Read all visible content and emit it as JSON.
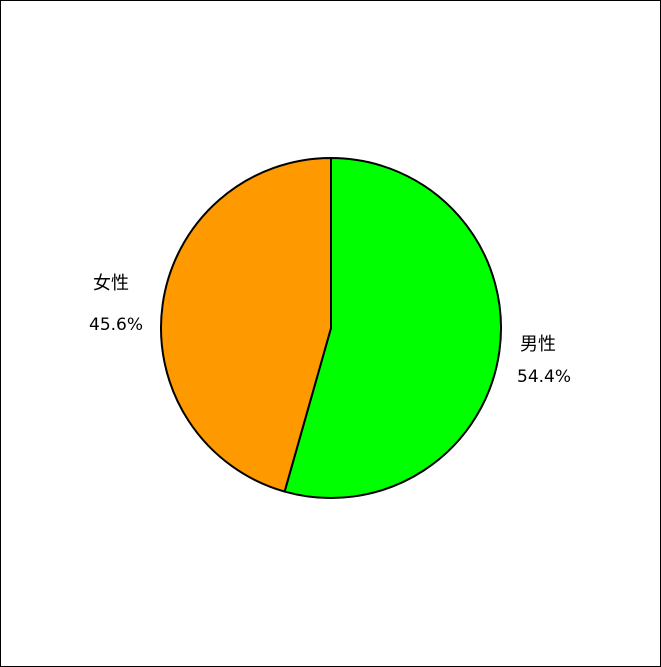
{
  "chart_data": {
    "type": "pie",
    "title": "",
    "start_angle": "12 o'clock",
    "direction": "clockwise",
    "slices": [
      {
        "label": "男性",
        "value": 54.4,
        "value_label": "54.4%",
        "color": "#00ff00"
      },
      {
        "label": "女性",
        "value": 45.6,
        "value_label": "45.6%",
        "color": "#ff9900"
      }
    ],
    "stroke_color": "#000000",
    "legend": "none"
  }
}
